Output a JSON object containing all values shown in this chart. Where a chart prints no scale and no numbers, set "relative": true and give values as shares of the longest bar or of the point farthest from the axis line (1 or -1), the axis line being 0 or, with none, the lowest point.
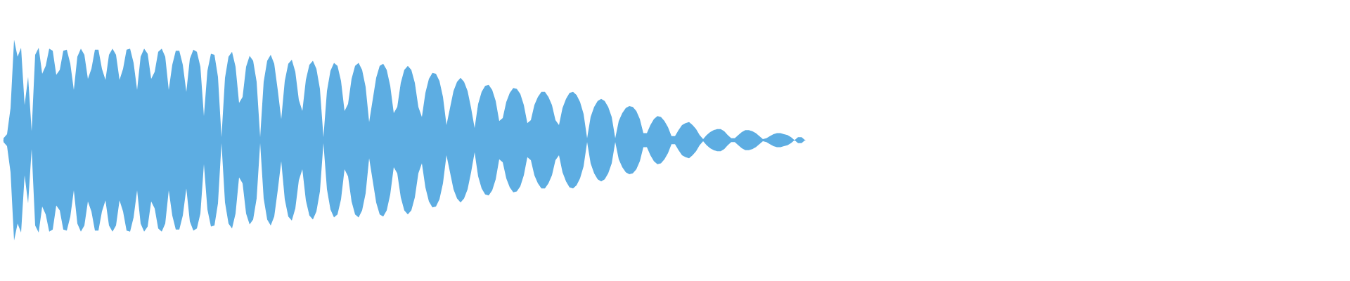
{
  "chart_data": {
    "type": "area",
    "relative": true,
    "categories": [
      null,
      null,
      null,
      null,
      null,
      null,
      null,
      null,
      null,
      null,
      null,
      null,
      null,
      null,
      null,
      null,
      null,
      null,
      null,
      null,
      null,
      null,
      null,
      null,
      null,
      null,
      null,
      null,
      null,
      null,
      null,
      null,
      null,
      null,
      null,
      null,
      null,
      null,
      null,
      null,
      null,
      null,
      null,
      null,
      null,
      null,
      null,
      null,
      null,
      null,
      null,
      null,
      null,
      null,
      null,
      null,
      null,
      null,
      null,
      null,
      null,
      null,
      null,
      null,
      null,
      null,
      null,
      null,
      null,
      null,
      null,
      null,
      null,
      null,
      null,
      null,
      null,
      null,
      null,
      null,
      null,
      null,
      null,
      null,
      null,
      null,
      null,
      null,
      null,
      null,
      null,
      null,
      null,
      null,
      null,
      null,
      null,
      null,
      null,
      null,
      null,
      null,
      null,
      null,
      null,
      null,
      null,
      null,
      null,
      null,
      null,
      null,
      null,
      null,
      null,
      null,
      null,
      null,
      null,
      null,
      null,
      null,
      null,
      null,
      null,
      null,
      null,
      null,
      null,
      null,
      null,
      null,
      null,
      null,
      null,
      null,
      null,
      null,
      null,
      null,
      null,
      null,
      null,
      null,
      null,
      null,
      null,
      null,
      null,
      null,
      null,
      null,
      null,
      null,
      null,
      null,
      null,
      null,
      null,
      null,
      null,
      null,
      null,
      null,
      null,
      null,
      null,
      null,
      null,
      null,
      null,
      null,
      null,
      null,
      null,
      null,
      null,
      null,
      null,
      null,
      null,
      null,
      null,
      null,
      null,
      null,
      null,
      null,
      null,
      null,
      null,
      null,
      null,
      null,
      null,
      null,
      null,
      null,
      null,
      null,
      null,
      null,
      null,
      null,
      null,
      null,
      null,
      null,
      null,
      null,
      null,
      null,
      null,
      null,
      null,
      null,
      null,
      null,
      null,
      null,
      null,
      null,
      null,
      null,
      null,
      null,
      null,
      null,
      null
    ],
    "series": [
      {
        "color": "#5dade2",
        "values": [
          0.02,
          0.06,
          0.32,
          1.0,
          0.83,
          0.92,
          0.35,
          0.63,
          0.09,
          0.85,
          0.92,
          0.66,
          0.74,
          0.91,
          0.89,
          0.65,
          0.7,
          0.89,
          0.9,
          0.76,
          0.5,
          0.83,
          0.91,
          0.85,
          0.61,
          0.71,
          0.9,
          0.9,
          0.71,
          0.6,
          0.85,
          0.91,
          0.85,
          0.6,
          0.71,
          0.9,
          0.91,
          0.77,
          0.5,
          0.83,
          0.91,
          0.86,
          0.61,
          0.68,
          0.88,
          0.91,
          0.83,
          0.5,
          0.75,
          0.89,
          0.89,
          0.75,
          0.48,
          0.81,
          0.9,
          0.88,
          0.73,
          0.24,
          0.69,
          0.86,
          0.85,
          0.63,
          0.03,
          0.62,
          0.83,
          0.88,
          0.73,
          0.37,
          0.43,
          0.73,
          0.84,
          0.79,
          0.58,
          0.03,
          0.58,
          0.79,
          0.85,
          0.76,
          0.5,
          0.21,
          0.59,
          0.76,
          0.8,
          0.68,
          0.4,
          0.29,
          0.6,
          0.75,
          0.79,
          0.71,
          0.51,
          0.03,
          0.49,
          0.69,
          0.77,
          0.74,
          0.59,
          0.29,
          0.36,
          0.61,
          0.74,
          0.77,
          0.7,
          0.53,
          0.18,
          0.4,
          0.62,
          0.74,
          0.76,
          0.7,
          0.54,
          0.27,
          0.33,
          0.57,
          0.7,
          0.74,
          0.7,
          0.57,
          0.33,
          0.23,
          0.47,
          0.61,
          0.67,
          0.66,
          0.59,
          0.43,
          0.15,
          0.32,
          0.49,
          0.58,
          0.62,
          0.58,
          0.49,
          0.32,
          0.12,
          0.36,
          0.48,
          0.54,
          0.55,
          0.5,
          0.39,
          0.19,
          0.22,
          0.38,
          0.47,
          0.52,
          0.51,
          0.46,
          0.35,
          0.17,
          0.2,
          0.35,
          0.43,
          0.48,
          0.48,
          0.43,
          0.35,
          0.2,
          0.15,
          0.32,
          0.41,
          0.47,
          0.48,
          0.45,
          0.38,
          0.26,
          0.02,
          0.23,
          0.33,
          0.39,
          0.41,
          0.39,
          0.33,
          0.23,
          0.02,
          0.19,
          0.27,
          0.32,
          0.34,
          0.33,
          0.29,
          0.21,
          0.07,
          0.07,
          0.15,
          0.21,
          0.24,
          0.23,
          0.19,
          0.13,
          0.04,
          0.04,
          0.1,
          0.15,
          0.17,
          0.18,
          0.15,
          0.11,
          0.05,
          0.01,
          0.05,
          0.08,
          0.1,
          0.11,
          0.11,
          0.09,
          0.05,
          0.02,
          0.02,
          0.05,
          0.08,
          0.1,
          0.1,
          0.09,
          0.07,
          0.04,
          0.01,
          0.02,
          0.04,
          0.06,
          0.07,
          0.07,
          0.06,
          0.05,
          0.03,
          0,
          0.03,
          0.03,
          0
        ]
      },
      {
        "color": "#5dade2",
        "values": [
          -0.02,
          -0.06,
          -0.32,
          -1.0,
          -0.83,
          -0.92,
          -0.35,
          -0.63,
          -0.09,
          -0.85,
          -0.92,
          -0.66,
          -0.74,
          -0.91,
          -0.89,
          -0.65,
          -0.7,
          -0.89,
          -0.9,
          -0.76,
          -0.5,
          -0.83,
          -0.91,
          -0.85,
          -0.61,
          -0.71,
          -0.9,
          -0.9,
          -0.71,
          -0.6,
          -0.85,
          -0.91,
          -0.85,
          -0.6,
          -0.71,
          -0.9,
          -0.91,
          -0.77,
          -0.5,
          -0.83,
          -0.91,
          -0.86,
          -0.61,
          -0.68,
          -0.88,
          -0.91,
          -0.83,
          -0.5,
          -0.75,
          -0.89,
          -0.89,
          -0.75,
          -0.48,
          -0.81,
          -0.9,
          -0.88,
          -0.73,
          -0.24,
          -0.69,
          -0.86,
          -0.85,
          -0.63,
          -0.03,
          -0.62,
          -0.83,
          -0.88,
          -0.73,
          -0.37,
          -0.43,
          -0.73,
          -0.84,
          -0.79,
          -0.58,
          -0.03,
          -0.58,
          -0.79,
          -0.85,
          -0.76,
          -0.5,
          -0.21,
          -0.59,
          -0.76,
          -0.8,
          -0.68,
          -0.4,
          -0.29,
          -0.6,
          -0.75,
          -0.79,
          -0.71,
          -0.51,
          -0.03,
          -0.49,
          -0.69,
          -0.77,
          -0.74,
          -0.59,
          -0.29,
          -0.36,
          -0.61,
          -0.74,
          -0.77,
          -0.7,
          -0.53,
          -0.18,
          -0.4,
          -0.62,
          -0.74,
          -0.76,
          -0.7,
          -0.54,
          -0.27,
          -0.33,
          -0.57,
          -0.7,
          -0.74,
          -0.7,
          -0.57,
          -0.33,
          -0.23,
          -0.47,
          -0.61,
          -0.67,
          -0.66,
          -0.59,
          -0.43,
          -0.15,
          -0.32,
          -0.49,
          -0.58,
          -0.62,
          -0.58,
          -0.49,
          -0.32,
          -0.12,
          -0.36,
          -0.48,
          -0.54,
          -0.55,
          -0.5,
          -0.39,
          -0.19,
          -0.22,
          -0.38,
          -0.47,
          -0.52,
          -0.51,
          -0.46,
          -0.35,
          -0.17,
          -0.2,
          -0.35,
          -0.43,
          -0.48,
          -0.48,
          -0.43,
          -0.35,
          -0.2,
          -0.15,
          -0.32,
          -0.41,
          -0.47,
          -0.48,
          -0.45,
          -0.38,
          -0.26,
          -0.02,
          -0.23,
          -0.33,
          -0.39,
          -0.41,
          -0.39,
          -0.33,
          -0.23,
          -0.02,
          -0.19,
          -0.27,
          -0.32,
          -0.34,
          -0.33,
          -0.29,
          -0.21,
          -0.07,
          -0.07,
          -0.15,
          -0.21,
          -0.24,
          -0.23,
          -0.19,
          -0.13,
          -0.04,
          -0.04,
          -0.1,
          -0.15,
          -0.17,
          -0.18,
          -0.15,
          -0.11,
          -0.05,
          -0.01,
          -0.05,
          -0.08,
          -0.1,
          -0.11,
          -0.11,
          -0.09,
          -0.05,
          -0.02,
          -0.02,
          -0.05,
          -0.08,
          -0.1,
          -0.1,
          -0.09,
          -0.07,
          -0.04,
          -0.01,
          -0.02,
          -0.04,
          -0.06,
          -0.07,
          -0.07,
          -0.06,
          -0.05,
          -0.03,
          0,
          -0.03,
          -0.03,
          0
        ]
      }
    ]
  }
}
